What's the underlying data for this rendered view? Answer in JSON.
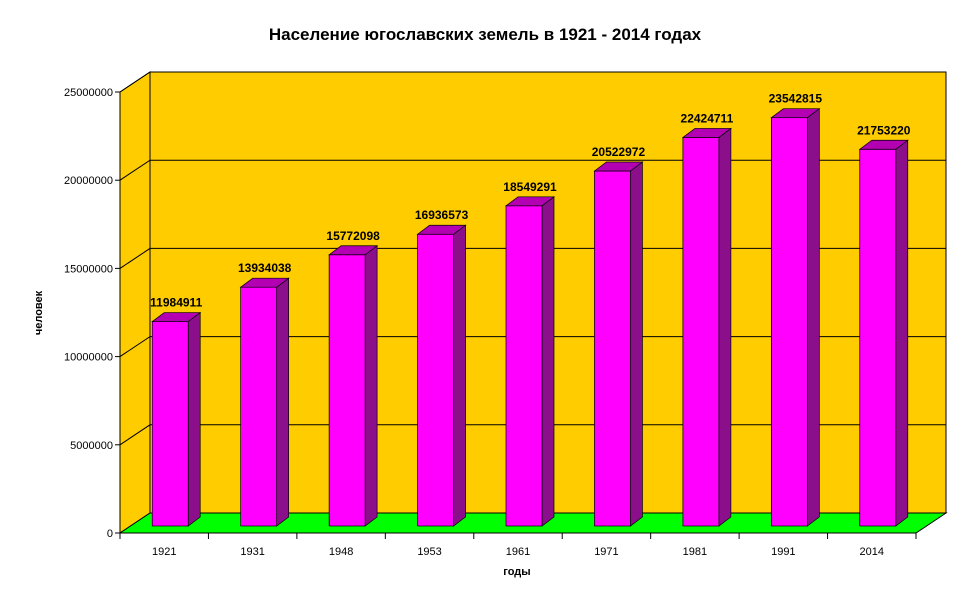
{
  "chart_data": {
    "type": "bar",
    "title": "Население югославских земель в 1921 - 2014 годах",
    "xlabel": "годы",
    "ylabel": "человек",
    "categories": [
      "1921",
      "1931",
      "1948",
      "1953",
      "1961",
      "1971",
      "1981",
      "1991",
      "2014"
    ],
    "values": [
      11984911,
      13934038,
      15772098,
      16936573,
      18549291,
      20522972,
      22424711,
      23542815,
      21753220
    ],
    "ylim": [
      0,
      25000000
    ],
    "yticks": [
      "0",
      "5000000",
      "10000000",
      "15000000",
      "20000000",
      "25000000"
    ],
    "grid": true,
    "legend": "none",
    "colors": {
      "bar_front": "#ff00ff",
      "bar_side": "#8b0f8b",
      "bar_top": "#b200b2",
      "wall": "#ffcc00",
      "floor": "#00ff00",
      "gridline": "#000000"
    }
  }
}
